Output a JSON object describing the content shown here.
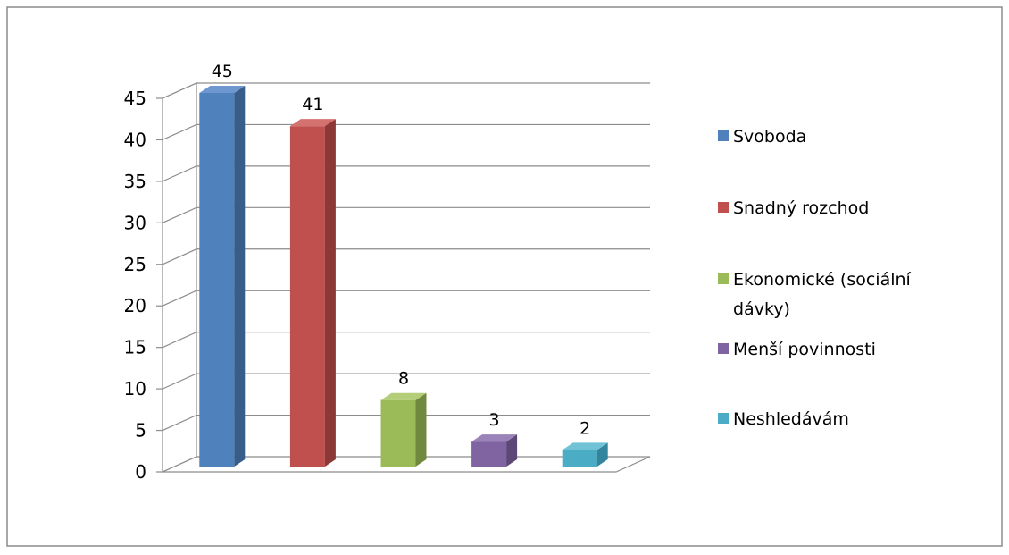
{
  "chart_data": {
    "type": "bar",
    "three_d": true,
    "categories": [
      "Svoboda",
      "Snadný rozchod",
      "Ekonomické (sociální dávky)",
      "Menší povinnosti",
      "Neshledávám"
    ],
    "values": [
      45,
      41,
      8,
      3,
      2
    ],
    "colors": [
      "#4F81BD",
      "#C0504D",
      "#9BBB59",
      "#8064A2",
      "#4BACC6"
    ],
    "side_colors": [
      "#385D8A",
      "#8C3836",
      "#71893F",
      "#5C4776",
      "#31859C"
    ],
    "top_colors": [
      "#6E97CF",
      "#D4726F",
      "#B3CD78",
      "#9A83B8",
      "#72C2D6"
    ],
    "y_ticks": [
      "0",
      "5",
      "10",
      "15",
      "20",
      "25",
      "30",
      "35",
      "40",
      "45"
    ],
    "ylim": [
      0,
      45
    ],
    "grid": true,
    "data_labels": true,
    "legend_position": "right",
    "legend": [
      {
        "lines": [
          "Svoboda"
        ]
      },
      {
        "lines": [
          "Snadný rozchod"
        ]
      },
      {
        "lines": [
          "Ekonomické (sociální",
          "dávky)"
        ]
      },
      {
        "lines": [
          "Menší povinnosti"
        ]
      },
      {
        "lines": [
          "Neshledávám"
        ]
      }
    ]
  }
}
